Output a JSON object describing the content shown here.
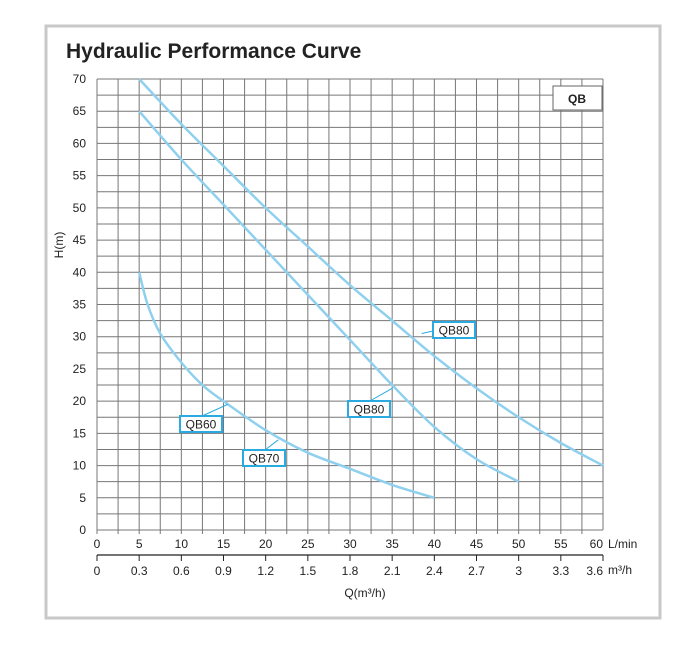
{
  "chart_data": {
    "type": "line",
    "title": "Hydraulic Performance Curve",
    "model_badge": "QB",
    "ylabel": "H(m)",
    "xlabel": "Q(m³/h)",
    "x_unit_primary": "L/min",
    "x_unit_secondary": "m³/h",
    "xlim": [
      0,
      60
    ],
    "ylim": [
      0,
      70
    ],
    "grid": true,
    "x_ticks": [
      "0",
      "5",
      "10",
      "15",
      "20",
      "25",
      "30",
      "35",
      "40",
      "45",
      "50",
      "55",
      "60"
    ],
    "x_ticks_values": [
      0,
      5,
      10,
      15,
      20,
      25,
      30,
      35,
      40,
      45,
      50,
      55,
      60
    ],
    "x2_ticks": [
      "0",
      "0.3",
      "0.6",
      "0.9",
      "1.2",
      "1.5",
      "1.8",
      "2.1",
      "2.4",
      "2.7",
      "3",
      "3.3",
      "3.6"
    ],
    "y_ticks": [
      "0",
      "5",
      "10",
      "15",
      "20",
      "25",
      "30",
      "35",
      "40",
      "45",
      "50",
      "55",
      "60",
      "65",
      "70"
    ],
    "y_ticks_values": [
      0,
      5,
      10,
      15,
      20,
      25,
      30,
      35,
      40,
      45,
      50,
      55,
      60,
      65,
      70
    ],
    "line_color": "#8fd0ef",
    "label_color": "#29abe2",
    "series": [
      {
        "name": "QB80",
        "x": [
          5,
          10,
          15,
          20,
          25,
          30,
          35,
          40,
          45,
          50,
          55,
          60
        ],
        "y": [
          70,
          63,
          56.5,
          50,
          44,
          38,
          32.5,
          27,
          22,
          17.5,
          13.5,
          10
        ],
        "label_at": [
          38.5,
          30.5
        ]
      },
      {
        "name": "QB80",
        "x": [
          5,
          10,
          15,
          20,
          25,
          30,
          35,
          40,
          45,
          50
        ],
        "y": [
          65,
          57.5,
          50.5,
          43.5,
          36.5,
          29.5,
          22.5,
          16,
          11,
          7.5
        ],
        "label_at": [
          35,
          22
        ]
      },
      {
        "name": "QB60",
        "x": [
          5,
          6,
          7.5,
          10,
          12.5,
          15,
          20,
          25,
          30,
          35,
          40
        ],
        "y": [
          40,
          35,
          30.5,
          26,
          22.5,
          20,
          15.5,
          12,
          9.5,
          7,
          5
        ],
        "label_at": [
          15.5,
          19.5
        ]
      },
      {
        "name": "QB70",
        "x": [],
        "y": [],
        "label_at": [
          21.5,
          14
        ]
      }
    ],
    "labels": [
      "QB80",
      "QB80",
      "QB60",
      "QB70"
    ]
  }
}
